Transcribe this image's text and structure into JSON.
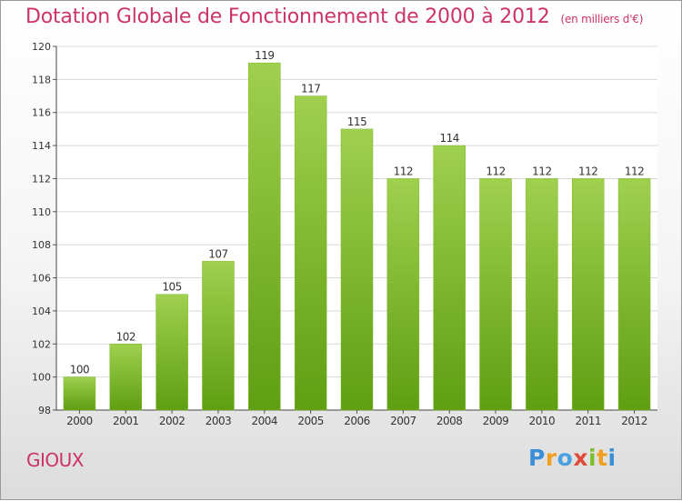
{
  "title": "Dotation Globale de Fonctionnement de 2000 à 2012",
  "subtitle": "(en milliers d'€)",
  "commune": "GIOUX",
  "logo_text": "Proxiti",
  "colors": {
    "title": "#cc3366",
    "bar_light": "#9fd04e",
    "bar_dark": "#5f9e12",
    "grid": "#d8d8d8"
  },
  "chart_data": {
    "type": "bar",
    "title": "Dotation Globale de Fonctionnement de 2000 à 2012",
    "subtitle": "(en milliers d'€)",
    "categories": [
      "2000",
      "2001",
      "2002",
      "2003",
      "2004",
      "2005",
      "2006",
      "2007",
      "2008",
      "2009",
      "2010",
      "2011",
      "2012"
    ],
    "values": [
      100,
      102,
      105,
      107,
      119,
      117,
      115,
      112,
      114,
      112,
      112,
      112,
      112
    ],
    "ylim": [
      98,
      120
    ],
    "yticks": [
      98,
      100,
      102,
      104,
      106,
      108,
      110,
      112,
      114,
      116,
      118,
      120
    ],
    "grid": true,
    "legend": "none"
  }
}
